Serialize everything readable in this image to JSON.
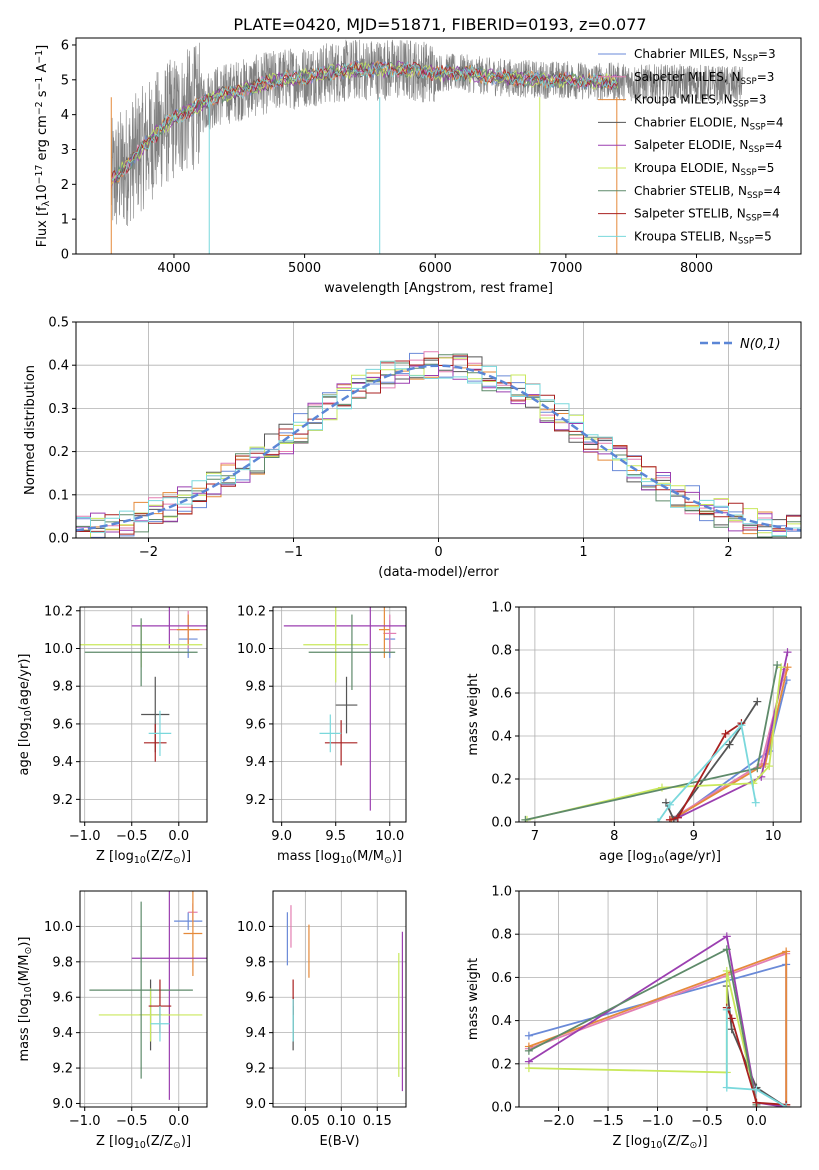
{
  "figure_title": "PLATE=0420, MJD=51871, FIBERID=0193, z=0.077",
  "series_names": [
    "Chabrier MILES, N$_{SSP}$=3",
    "Salpeter MILES, N$_{SSP}$=3",
    "Kroupa MILES, N$_{SSP}$=3",
    "Chabrier ELODIE, N$_{SSP}$=4",
    "Salpeter ELODIE, N$_{SSP}$=4",
    "Kroupa ELODIE, N$_{SSP}$=5",
    "Chabrier STELIB, N$_{SSP}$=4",
    "Salpeter STELIB, N$_{SSP}$=4",
    "Kroupa STELIB, N$_{SSP}$=5"
  ],
  "legend_labels": [
    [
      "Chabrier MILES, N",
      "SSP",
      "=3"
    ],
    [
      "Salpeter MILES, N",
      "SSP",
      "=3"
    ],
    [
      "Kroupa MILES, N",
      "SSP",
      "=3"
    ],
    [
      "Chabrier ELODIE, N",
      "SSP",
      "=4"
    ],
    [
      "Salpeter ELODIE, N",
      "SSP",
      "=4"
    ],
    [
      "Kroupa ELODIE, N",
      "SSP",
      "=5"
    ],
    [
      "Chabrier STELIB, N",
      "SSP",
      "=4"
    ],
    [
      "Salpeter STELIB, N",
      "SSP",
      "=4"
    ],
    [
      "Kroupa STELIB, N",
      "SSP",
      "=5"
    ]
  ],
  "series_colors": [
    "#6a8ad8",
    "#e37fb2",
    "#e58a3a",
    "#555555",
    "#9b3fb0",
    "#c9e85c",
    "#5e8a6a",
    "#a82020",
    "#7ad8dc"
  ],
  "chart_data": [
    {
      "id": "spectrum",
      "type": "line",
      "xlabel": "wavelength [Angstrom, rest frame]",
      "ylabel_parts": [
        "Flux [f",
        "λ",
        "10",
        "−17",
        " erg cm",
        "−2",
        " s",
        "−1",
        " A",
        "−1",
        "]"
      ],
      "xlim": [
        3250,
        8800
      ],
      "ylim": [
        0,
        6.2
      ],
      "xticks": [
        4000,
        5000,
        6000,
        7000,
        8000
      ],
      "yticks": [
        0,
        1,
        2,
        3,
        4,
        5,
        6
      ],
      "data_color": "#808080",
      "data_range": [
        3520,
        8350
      ],
      "continuum_knots": [
        [
          3520,
          2.1
        ],
        [
          3600,
          2.4
        ],
        [
          3700,
          2.8
        ],
        [
          3800,
          3.2
        ],
        [
          3900,
          3.6
        ],
        [
          4000,
          3.9
        ],
        [
          4100,
          4.1
        ],
        [
          4200,
          4.3
        ],
        [
          4300,
          4.5
        ],
        [
          4400,
          4.6
        ],
        [
          4600,
          4.8
        ],
        [
          4800,
          5.0
        ],
        [
          5000,
          5.1
        ],
        [
          5200,
          5.2
        ],
        [
          5400,
          5.3
        ],
        [
          5600,
          5.3
        ],
        [
          5800,
          5.3
        ],
        [
          6000,
          5.2
        ],
        [
          6200,
          5.2
        ],
        [
          6400,
          5.1
        ],
        [
          6600,
          5.05
        ],
        [
          6800,
          5.0
        ],
        [
          7000,
          5.0
        ],
        [
          7200,
          4.95
        ],
        [
          7400,
          4.95
        ],
        [
          7600,
          4.9
        ],
        [
          7800,
          4.9
        ],
        [
          8000,
          4.9
        ],
        [
          8200,
          4.85
        ],
        [
          8350,
          4.85
        ]
      ],
      "model_dropouts": [
        [
          3520,
          0.0
        ],
        [
          4270,
          0.0
        ],
        [
          5575,
          0.0
        ],
        [
          6800,
          0.0
        ],
        [
          7390,
          0.0
        ]
      ],
      "legend_position": "upper-right",
      "grid": false
    },
    {
      "id": "residuals",
      "type": "histogram",
      "xlabel": "(data-model)/error",
      "ylabel": "Normed distribution",
      "xlim": [
        -2.5,
        2.5
      ],
      "ylim": [
        0,
        0.5
      ],
      "xticks": [
        -2,
        -1,
        0,
        1,
        2
      ],
      "yticks": [
        0,
        0.1,
        0.2,
        0.3,
        0.4,
        0.5
      ],
      "bin_width": 0.1,
      "reference_curve": {
        "name": "N(0,1)",
        "mean": 0,
        "sigma": 1,
        "color": "#5b86d6"
      },
      "legend_position": "upper-right",
      "grid": true
    },
    {
      "id": "age-vs-z",
      "type": "scatter",
      "xlabel_parts": [
        "Z [log",
        "10",
        "(Z/Z",
        "⊙",
        ")]"
      ],
      "ylabel_parts": [
        "age  [log",
        "10",
        "(age/yr)]"
      ],
      "xlim": [
        -1.05,
        0.3
      ],
      "ylim": [
        9.08,
        10.22
      ],
      "xticks": [
        -1.0,
        -0.5,
        0.0
      ],
      "yticks": [
        9.2,
        9.4,
        9.6,
        9.8,
        10.0,
        10.2
      ],
      "points": [
        {
          "s": 0,
          "x": 0.1,
          "y": 10.05,
          "xe": 0.1,
          "ye": 0.1
        },
        {
          "s": 1,
          "x": 0.1,
          "y": 10.1,
          "xe": 0.2,
          "ye": 0.1
        },
        {
          "s": 2,
          "x": 0.1,
          "y": 10.1,
          "xe": 0.12,
          "ye": 0.08
        },
        {
          "s": 3,
          "x": -0.25,
          "y": 9.65,
          "xe": 0.15,
          "ye": 0.2
        },
        {
          "s": 4,
          "x": -0.1,
          "y": 10.12,
          "xe": 0.4,
          "ye": 0.12
        },
        {
          "s": 5,
          "x": -0.4,
          "y": 10.02,
          "xe": 0.65,
          "ye": 0.12
        },
        {
          "s": 6,
          "x": -0.4,
          "y": 9.98,
          "xe": 0.6,
          "ye": 0.18
        },
        {
          "s": 7,
          "x": -0.25,
          "y": 9.5,
          "xe": 0.12,
          "ye": 0.1
        },
        {
          "s": 8,
          "x": -0.2,
          "y": 9.55,
          "xe": 0.12,
          "ye": 0.12
        }
      ],
      "grid": true
    },
    {
      "id": "age-vs-mass",
      "type": "scatter",
      "xlabel_parts": [
        "mass [log",
        "10",
        "(M/M",
        "⊙",
        ")]"
      ],
      "xlim": [
        8.92,
        10.15
      ],
      "ylim": [
        9.08,
        10.22
      ],
      "xticks": [
        9.0,
        9.5,
        10.0
      ],
      "yticks": [
        9.2,
        9.4,
        9.6,
        9.8,
        10.0,
        10.2
      ],
      "points": [
        {
          "s": 0,
          "x": 10.0,
          "y": 10.05,
          "xe": 0.05,
          "ye": 0.1
        },
        {
          "s": 1,
          "x": 10.0,
          "y": 10.08,
          "xe": 0.06,
          "ye": 0.1
        },
        {
          "s": 2,
          "x": 9.95,
          "y": 10.1,
          "xe": 0.05,
          "ye": 0.15
        },
        {
          "s": 3,
          "x": 9.6,
          "y": 9.7,
          "xe": 0.1,
          "ye": 0.15
        },
        {
          "s": 4,
          "x": 9.82,
          "y": 10.12,
          "xe": 0.8,
          "ye": 0.98
        },
        {
          "s": 5,
          "x": 9.5,
          "y": 10.02,
          "xe": 0.3,
          "ye": 0.2
        },
        {
          "s": 6,
          "x": 9.65,
          "y": 9.98,
          "xe": 0.4,
          "ye": 0.2
        },
        {
          "s": 7,
          "x": 9.55,
          "y": 9.5,
          "xe": 0.15,
          "ye": 0.12
        },
        {
          "s": 8,
          "x": 9.45,
          "y": 9.55,
          "xe": 0.1,
          "ye": 0.1
        }
      ],
      "grid": true
    },
    {
      "id": "massweight-vs-age",
      "type": "line",
      "xlabel_parts": [
        "age  [log",
        "10",
        "(age/yr)]"
      ],
      "ylabel": "mass weight",
      "xlim": [
        6.8,
        10.35
      ],
      "ylim": [
        0,
        1.0
      ],
      "xticks": [
        7,
        8,
        9,
        10
      ],
      "yticks": [
        0.0,
        0.2,
        0.4,
        0.6,
        0.8,
        1.0
      ],
      "series": [
        {
          "s": 0,
          "x": [
            8.75,
            9.95,
            10.17
          ],
          "y": [
            0.01,
            0.33,
            0.66
          ]
        },
        {
          "s": 1,
          "x": [
            8.7,
            9.85,
            10.15
          ],
          "y": [
            0.01,
            0.27,
            0.71
          ]
        },
        {
          "s": 2,
          "x": [
            8.72,
            9.9,
            10.18
          ],
          "y": [
            0.01,
            0.27,
            0.72
          ]
        },
        {
          "s": 3,
          "x": [
            8.65,
            8.75,
            9.45,
            9.8
          ],
          "y": [
            0.09,
            0.01,
            0.36,
            0.56
          ]
        },
        {
          "s": 4,
          "x": [
            8.8,
            9.85,
            10.18
          ],
          "y": [
            0.02,
            0.21,
            0.79
          ]
        },
        {
          "s": 5,
          "x": [
            6.9,
            8.6,
            9.75,
            9.95,
            10.1
          ],
          "y": [
            0.01,
            0.16,
            0.18,
            0.26,
            0.72
          ]
        },
        {
          "s": 6,
          "x": [
            6.88,
            9.8,
            10.05
          ],
          "y": [
            0.01,
            0.25,
            0.73
          ]
        },
        {
          "s": 7,
          "x": [
            8.7,
            8.8,
            9.4,
            9.6
          ],
          "y": [
            0.01,
            0.02,
            0.41,
            0.46
          ]
        },
        {
          "s": 8,
          "x": [
            8.55,
            8.7,
            9.6,
            9.78
          ],
          "y": [
            0.0,
            0.08,
            0.45,
            0.09
          ]
        }
      ],
      "grid": true
    },
    {
      "id": "mass-vs-z",
      "type": "scatter",
      "xlabel_parts": [
        "Z [log",
        "10",
        "(Z/Z",
        "⊙",
        ")]"
      ],
      "ylabel_parts": [
        "mass [log",
        "10",
        "(M/M",
        "⊙",
        ")]"
      ],
      "xlim": [
        -1.05,
        0.3
      ],
      "ylim": [
        8.98,
        10.2
      ],
      "xticks": [
        -1.0,
        -0.5,
        0.0
      ],
      "yticks": [
        9.0,
        9.2,
        9.4,
        9.6,
        9.8,
        10.0
      ],
      "points": [
        {
          "s": 0,
          "x": 0.1,
          "y": 10.03,
          "xe": 0.15,
          "ye": 0.05
        },
        {
          "s": 1,
          "x": 0.15,
          "y": 10.08,
          "xe": 0.05,
          "ye": 0.05
        },
        {
          "s": 2,
          "x": 0.15,
          "y": 9.96,
          "xe": 0.1,
          "ye": 0.24
        },
        {
          "s": 3,
          "x": -0.3,
          "y": 9.5,
          "xe": 0.12,
          "ye": 0.2
        },
        {
          "s": 4,
          "x": -0.1,
          "y": 9.82,
          "xe": 0.4,
          "ye": 0.8
        },
        {
          "s": 5,
          "x": -0.3,
          "y": 9.5,
          "xe": 0.55,
          "ye": 0.15
        },
        {
          "s": 6,
          "x": -0.4,
          "y": 9.64,
          "xe": 0.55,
          "ye": 0.5
        },
        {
          "s": 7,
          "x": -0.2,
          "y": 9.55,
          "xe": 0.12,
          "ye": 0.15
        },
        {
          "s": 8,
          "x": -0.2,
          "y": 9.45,
          "xe": 0.1,
          "ye": 0.1
        }
      ],
      "grid": true
    },
    {
      "id": "mass-vs-ebv",
      "type": "scatter",
      "xlabel": "E(B-V)",
      "xlim": [
        0.005,
        0.19
      ],
      "ylim": [
        8.98,
        10.2
      ],
      "xticks": [
        0.05,
        0.1,
        0.15
      ],
      "yticks": [
        9.0,
        9.2,
        9.4,
        9.6,
        9.8,
        10.0
      ],
      "points": [
        {
          "s": 0,
          "x": 0.025,
          "y": 9.93,
          "xe": 0,
          "ye": 0.15
        },
        {
          "s": 1,
          "x": 0.03,
          "y": 10.0,
          "xe": 0,
          "ye": 0.12
        },
        {
          "s": 2,
          "x": 0.055,
          "y": 9.86,
          "xe": 0,
          "ye": 0.15
        },
        {
          "s": 3,
          "x": 0.033,
          "y": 9.45,
          "xe": 0,
          "ye": 0.15
        },
        {
          "s": 4,
          "x": 0.185,
          "y": 9.52,
          "xe": 0,
          "ye": 0.45
        },
        {
          "s": 5,
          "x": 0.18,
          "y": 9.5,
          "xe": 0,
          "ye": 0.35
        },
        {
          "s": 6,
          "x": 0.033,
          "y": 9.45,
          "xe": 0,
          "ye": 0.1
        },
        {
          "s": 7,
          "x": 0.033,
          "y": 9.6,
          "xe": 0,
          "ye": 0.1
        },
        {
          "s": 8,
          "x": 0.033,
          "y": 9.47,
          "xe": 0,
          "ye": 0.12
        }
      ],
      "grid": true
    },
    {
      "id": "massweight-vs-z",
      "type": "line",
      "xlabel_parts": [
        "Z [log",
        "10",
        "(Z/Z",
        "⊙",
        ")]"
      ],
      "ylabel": "mass weight",
      "xlim": [
        -2.4,
        0.45
      ],
      "ylim": [
        0,
        1.0
      ],
      "xticks": [
        -2.0,
        -1.5,
        -1.0,
        -0.5,
        0.0
      ],
      "yticks": [
        0.0,
        0.2,
        0.4,
        0.6,
        0.8,
        1.0
      ],
      "series": [
        {
          "s": 0,
          "x": [
            -2.3,
            0.3,
            0.3
          ],
          "y": [
            0.33,
            0.66,
            0.01
          ]
        },
        {
          "s": 1,
          "x": [
            -2.3,
            0.3,
            0.3
          ],
          "y": [
            0.27,
            0.71,
            0.01
          ]
        },
        {
          "s": 2,
          "x": [
            -2.3,
            0.3,
            0.3
          ],
          "y": [
            0.28,
            0.72,
            0.01
          ]
        },
        {
          "s": 3,
          "x": [
            -0.3,
            -0.25,
            0.0,
            0.3
          ],
          "y": [
            0.56,
            0.36,
            0.09,
            0.0
          ]
        },
        {
          "s": 4,
          "x": [
            -2.3,
            -0.3,
            0.0,
            0.3
          ],
          "y": [
            0.21,
            0.79,
            0.02,
            0.0
          ]
        },
        {
          "s": 5,
          "x": [
            -2.3,
            -0.3,
            -0.3,
            0.0
          ],
          "y": [
            0.18,
            0.16,
            0.63,
            0.02
          ]
        },
        {
          "s": 6,
          "x": [
            -2.3,
            -0.3,
            0.0,
            0.0
          ],
          "y": [
            0.26,
            0.73,
            0.01,
            0.0
          ]
        },
        {
          "s": 7,
          "x": [
            -0.3,
            -0.25,
            0.0,
            0.3
          ],
          "y": [
            0.46,
            0.41,
            0.02,
            0.01
          ]
        },
        {
          "s": 8,
          "x": [
            -0.3,
            -0.3,
            0.0,
            0.3
          ],
          "y": [
            0.45,
            0.09,
            0.08,
            0.0
          ]
        }
      ],
      "grid": true
    }
  ]
}
